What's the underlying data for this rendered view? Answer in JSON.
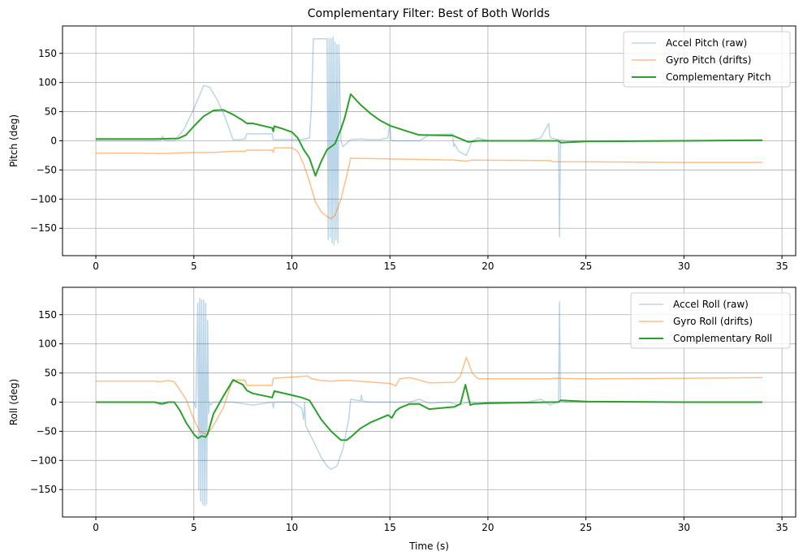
{
  "figure": {
    "title": "Complementary Filter: Best of Both Worlds",
    "background": "#ffffff",
    "grid_color": "#b0b0b0"
  },
  "colors": {
    "accel": "#1f77b4",
    "gyro": "#ff7f0e",
    "complementary": "#2ca02c"
  },
  "chart_data": [
    {
      "type": "line",
      "title": "Complementary Filter: Best of Both Worlds",
      "xlabel": "",
      "ylabel": "Pitch (deg)",
      "xlim": [
        -1.7,
        35.7
      ],
      "ylim": [
        -197,
        197
      ],
      "xticks": [
        0,
        5,
        10,
        15,
        20,
        25,
        30,
        35
      ],
      "yticks": [
        -150,
        -100,
        -50,
        0,
        50,
        100,
        150
      ],
      "ytick_labels": [
        "−150",
        "−100",
        "−50",
        "0",
        "50",
        "100",
        "150"
      ],
      "grid": true,
      "legend_position": "upper right",
      "series": [
        {
          "name": "Accel Pitch (raw)",
          "color": "#1f77b4",
          "alpha": 0.3,
          "linewidth": 1.5,
          "x": [
            0,
            3.3,
            3.4,
            3.5,
            4.0,
            4.5,
            5.0,
            5.5,
            5.8,
            6.2,
            6.6,
            7.0,
            7.3,
            7.6,
            7.7,
            8.0,
            8.5,
            9.0,
            9.05,
            9.2,
            10.0,
            10.5,
            10.9,
            11.0,
            11.1,
            11.3,
            11.5,
            11.8,
            11.85,
            11.9,
            11.95,
            12.0,
            12.05,
            12.1,
            12.15,
            12.2,
            12.25,
            12.3,
            12.35,
            12.4,
            12.5,
            12.6,
            13.0,
            13.5,
            14.0,
            14.5,
            14.9,
            15.0,
            15.05,
            15.2,
            16.0,
            16.5,
            17.0,
            18.2,
            18.25,
            18.3,
            18.5,
            18.9,
            19.2,
            19.5,
            20.0,
            22.0,
            22.7,
            23.1,
            23.15,
            23.2,
            23.6,
            23.65,
            23.7,
            24.0,
            25.0,
            30.0,
            34.0
          ],
          "values": [
            0,
            0,
            8,
            0,
            0,
            20,
            55,
            95,
            92,
            70,
            40,
            2,
            2,
            3,
            12,
            12,
            12,
            12,
            2,
            2,
            2,
            2,
            5,
            60,
            175,
            175,
            175,
            175,
            -170,
            175,
            -165,
            175,
            -175,
            178,
            -178,
            170,
            -170,
            165,
            -175,
            165,
            0,
            -10,
            2,
            3,
            2,
            2,
            5,
            30,
            2,
            0,
            0,
            0,
            10,
            12,
            -10,
            -5,
            -18,
            -25,
            0,
            5,
            0,
            0,
            5,
            30,
            10,
            5,
            2,
            -165,
            2,
            0,
            0,
            0,
            0
          ]
        },
        {
          "name": "Gyro Pitch (drifts)",
          "color": "#ff7f0e",
          "alpha": 0.5,
          "linewidth": 1.5,
          "x": [
            0,
            2,
            3.3,
            4,
            5,
            6,
            7,
            7.6,
            7.7,
            9.0,
            9.05,
            9.1,
            10.0,
            10.3,
            10.6,
            10.9,
            11.2,
            11.5,
            11.8,
            12.0,
            12.2,
            12.5,
            12.8,
            13.0,
            15,
            18.3,
            18.9,
            19.2,
            23.2,
            23.3,
            25,
            30,
            34
          ],
          "values": [
            -21,
            -21,
            -22,
            -21,
            -20,
            -20,
            -18,
            -18,
            -16,
            -16,
            -20,
            -12,
            -12,
            -18,
            -40,
            -70,
            -105,
            -122,
            -130,
            -134,
            -128,
            -100,
            -60,
            -30,
            -31,
            -33,
            -35,
            -33,
            -34,
            -36,
            -36,
            -37,
            -37
          ]
        },
        {
          "name": "Complementary Pitch",
          "color": "#2ca02c",
          "alpha": 1.0,
          "linewidth": 2,
          "x": [
            0,
            2,
            3,
            4.2,
            4.6,
            5.0,
            5.5,
            6.0,
            6.5,
            7.0,
            7.5,
            7.7,
            8.0,
            9.0,
            9.05,
            9.1,
            9.5,
            10.0,
            10.3,
            10.6,
            10.9,
            11.2,
            11.5,
            11.8,
            12.0,
            12.2,
            12.5,
            12.7,
            13.0,
            13.5,
            14.0,
            14.5,
            15,
            16,
            16.5,
            18.2,
            18.5,
            19.0,
            19.5,
            23.6,
            23.7,
            25,
            30,
            34
          ],
          "values": [
            3,
            3,
            3,
            4,
            10,
            25,
            42,
            52,
            53,
            45,
            35,
            30,
            30,
            22,
            16,
            25,
            21,
            15,
            5,
            -15,
            -30,
            -60,
            -35,
            -15,
            -10,
            -5,
            20,
            40,
            80,
            62,
            47,
            35,
            26,
            15,
            10,
            9,
            5,
            -2,
            0,
            0,
            -3,
            -1,
            0,
            1
          ]
        }
      ]
    },
    {
      "type": "line",
      "title": "",
      "xlabel": "Time (s)",
      "ylabel": "Roll (deg)",
      "xlim": [
        -1.7,
        35.7
      ],
      "ylim": [
        -197,
        197
      ],
      "xticks": [
        0,
        5,
        10,
        15,
        20,
        25,
        30,
        35
      ],
      "yticks": [
        -150,
        -100,
        -50,
        0,
        50,
        100,
        150
      ],
      "ytick_labels": [
        "−150",
        "−100",
        "−50",
        "0",
        "50",
        "100",
        "150"
      ],
      "grid": true,
      "legend_position": "upper right",
      "series": [
        {
          "name": "Accel Roll (raw)",
          "color": "#1f77b4",
          "alpha": 0.3,
          "linewidth": 1.5,
          "x": [
            0,
            3,
            3.3,
            3.4,
            4.0,
            5.0,
            5.1,
            5.2,
            5.25,
            5.3,
            5.35,
            5.4,
            5.45,
            5.5,
            5.55,
            5.6,
            5.65,
            5.7,
            5.75,
            5.8,
            5.85,
            6.0,
            7.0,
            8.0,
            9.0,
            9.05,
            9.1,
            10.0,
            10.5,
            10.6,
            10.65,
            10.7,
            11.0,
            11.5,
            11.8,
            12.0,
            12.3,
            12.6,
            12.9,
            13.0,
            13.5,
            13.55,
            13.6,
            14,
            15,
            16,
            16.5,
            17,
            18,
            18.5,
            19,
            19.5,
            20,
            22,
            22.7,
            23.2,
            23.6,
            23.65,
            23.7,
            24,
            25,
            30,
            34
          ],
          "values": [
            0,
            0,
            -5,
            0,
            0,
            0,
            -10,
            170,
            -150,
            178,
            -170,
            175,
            -175,
            175,
            -178,
            170,
            -175,
            140,
            -20,
            0,
            -5,
            0,
            0,
            -5,
            0,
            -10,
            0,
            0,
            -10,
            -30,
            0,
            -40,
            -60,
            -95,
            -110,
            -115,
            -110,
            -80,
            -30,
            5,
            2,
            12,
            2,
            0,
            0,
            0,
            5,
            -2,
            0,
            -5,
            0,
            -2,
            0,
            0,
            5,
            -5,
            2,
            172,
            2,
            0,
            0,
            0,
            0
          ]
        },
        {
          "name": "Gyro Roll (drifts)",
          "color": "#ff7f0e",
          "alpha": 0.5,
          "linewidth": 1.5,
          "x": [
            0,
            3,
            3.3,
            3.7,
            4.0,
            4.3,
            4.6,
            5.0,
            5.3,
            5.6,
            5.8,
            6.0,
            6.5,
            6.9,
            7.0,
            7.6,
            7.7,
            9.0,
            9.05,
            10.5,
            10.8,
            11.0,
            11.5,
            12.0,
            12.5,
            13.0,
            15.0,
            15.3,
            15.5,
            16.0,
            16.5,
            17.0,
            18.3,
            18.6,
            18.9,
            19.2,
            19.5,
            23.2,
            23.3,
            25,
            30,
            34
          ],
          "values": [
            36,
            36,
            35,
            37,
            35,
            20,
            5,
            -30,
            -50,
            -55,
            -50,
            -40,
            -10,
            30,
            38,
            38,
            29,
            29,
            41,
            44,
            45,
            40,
            37,
            36,
            37,
            37,
            32,
            28,
            40,
            42,
            38,
            33,
            34,
            45,
            77,
            50,
            40,
            40,
            41,
            40,
            41,
            42
          ]
        },
        {
          "name": "Complementary Roll",
          "color": "#2ca02c",
          "alpha": 1.0,
          "linewidth": 2,
          "x": [
            0,
            3,
            3.4,
            3.7,
            4.0,
            4.3,
            4.6,
            5.0,
            5.2,
            5.4,
            5.6,
            5.7,
            6.0,
            6.5,
            7.0,
            7.5,
            7.7,
            8.0,
            9.0,
            9.1,
            10.0,
            10.5,
            10.9,
            11.5,
            12.0,
            12.5,
            12.8,
            13.0,
            13.5,
            14.0,
            14.5,
            14.9,
            15.1,
            15.3,
            15.5,
            16.0,
            16.5,
            17.0,
            18.3,
            18.6,
            18.85,
            19.1,
            19.3,
            20,
            23.2,
            23.6,
            23.7,
            25,
            30,
            34
          ],
          "values": [
            0,
            0,
            -3,
            0,
            0,
            -15,
            -35,
            -55,
            -62,
            -58,
            -60,
            -55,
            -20,
            10,
            38,
            30,
            20,
            15,
            8,
            19,
            12,
            8,
            3,
            -30,
            -50,
            -65,
            -65,
            -60,
            -45,
            -35,
            -28,
            -22,
            -27,
            -15,
            -10,
            -3,
            -3,
            -12,
            -8,
            -3,
            30,
            -5,
            -3,
            -2,
            0,
            0,
            3,
            1,
            0,
            0
          ]
        }
      ]
    }
  ]
}
